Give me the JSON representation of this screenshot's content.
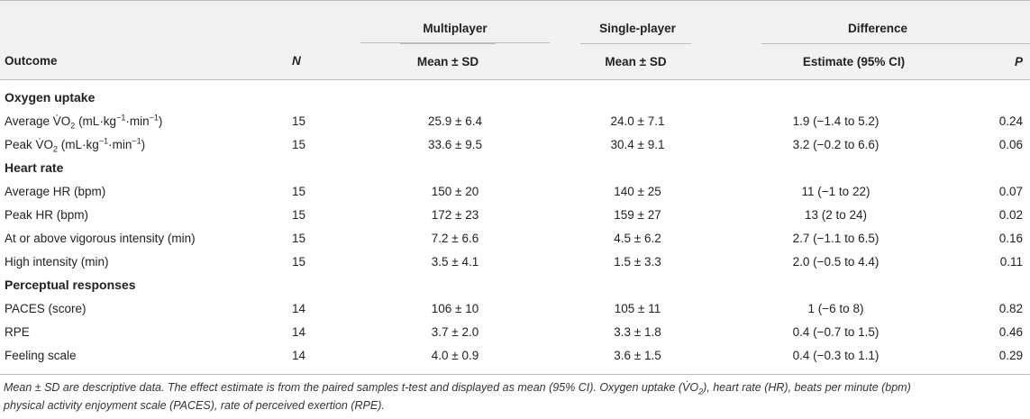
{
  "header": {
    "group_multiplayer": "Multiplayer",
    "group_singleplayer": "Single-player",
    "group_difference": "Difference",
    "col_outcome": "Outcome",
    "col_n": "N",
    "col_mp_stat": "Mean ± SD",
    "col_sp_stat": "Mean ± SD",
    "col_estimate": "Estimate (95% CI)",
    "col_p": "P"
  },
  "sections": [
    {
      "title": "Oxygen uptake",
      "rows": [
        {
          "outcome_pre": "Average V̇O",
          "outcome_sub": "2",
          "outcome_post": " (mL·kg",
          "outcome_sup1": "−1",
          "outcome_mid": "·min",
          "outcome_sup2": "−1",
          "outcome_end": ")",
          "n": "15",
          "mp": "25.9 ± 6.4",
          "sp": "24.0 ± 7.1",
          "est": "1.9 (−1.4 to 5.2)",
          "p": "0.24"
        },
        {
          "outcome_pre": "Peak V̇O",
          "outcome_sub": "2",
          "outcome_post": " (mL·kg",
          "outcome_sup1": "−1",
          "outcome_mid": "·min",
          "outcome_sup2": "−1",
          "outcome_end": ")",
          "n": "15",
          "mp": "33.6 ± 9.5",
          "sp": "30.4 ± 9.1",
          "est": "3.2 (−0.2 to 6.6)",
          "p": "0.06"
        }
      ]
    },
    {
      "title": "Heart rate",
      "rows": [
        {
          "outcome": "Average HR (bpm)",
          "n": "15",
          "mp": "150 ± 20",
          "sp": "140 ± 25",
          "est": "11 (−1 to 22)",
          "p": "0.07"
        },
        {
          "outcome": "Peak HR (bpm)",
          "n": "15",
          "mp": "172 ± 23",
          "sp": "159 ± 27",
          "est": "13 (2 to 24)",
          "p": "0.02"
        },
        {
          "outcome": "At or above vigorous intensity (min)",
          "n": "15",
          "mp": "7.2 ± 6.6",
          "sp": "4.5 ± 6.2",
          "est": "2.7 (−1.1 to 6.5)",
          "p": "0.16"
        },
        {
          "outcome": "High intensity (min)",
          "n": "15",
          "mp": "3.5 ± 4.1",
          "sp": "1.5 ± 3.3",
          "est": "2.0 (−0.5 to 4.4)",
          "p": "0.11"
        }
      ]
    },
    {
      "title": "Perceptual responses",
      "rows": [
        {
          "outcome": "PACES (score)",
          "n": "14",
          "mp": "106 ± 10",
          "sp": "105 ± 11",
          "est": "1 (−6 to 8)",
          "p": "0.82"
        },
        {
          "outcome": "RPE",
          "n": "14",
          "mp": "3.7 ± 2.0",
          "sp": "3.3 ± 1.8",
          "est": "0.4 (−0.7 to 1.5)",
          "p": "0.46"
        },
        {
          "outcome": "Feeling scale",
          "n": "14",
          "mp": "4.0 ± 0.9",
          "sp": "3.6 ± 1.5",
          "est": "0.4 (−0.3 to 1.1)",
          "p": "0.29"
        }
      ]
    }
  ],
  "footnote": {
    "line1_a": "Mean ± SD are descriptive data. The effect estimate is from the paired samples t-test and displayed as mean (95% CI). Oxygen uptake (V̇O",
    "line1_sub": "2",
    "line1_b": "), heart rate (HR), beats per minute (bpm)",
    "line2": "physical activity enjoyment scale (PACES), rate of perceived exertion (RPE)."
  }
}
